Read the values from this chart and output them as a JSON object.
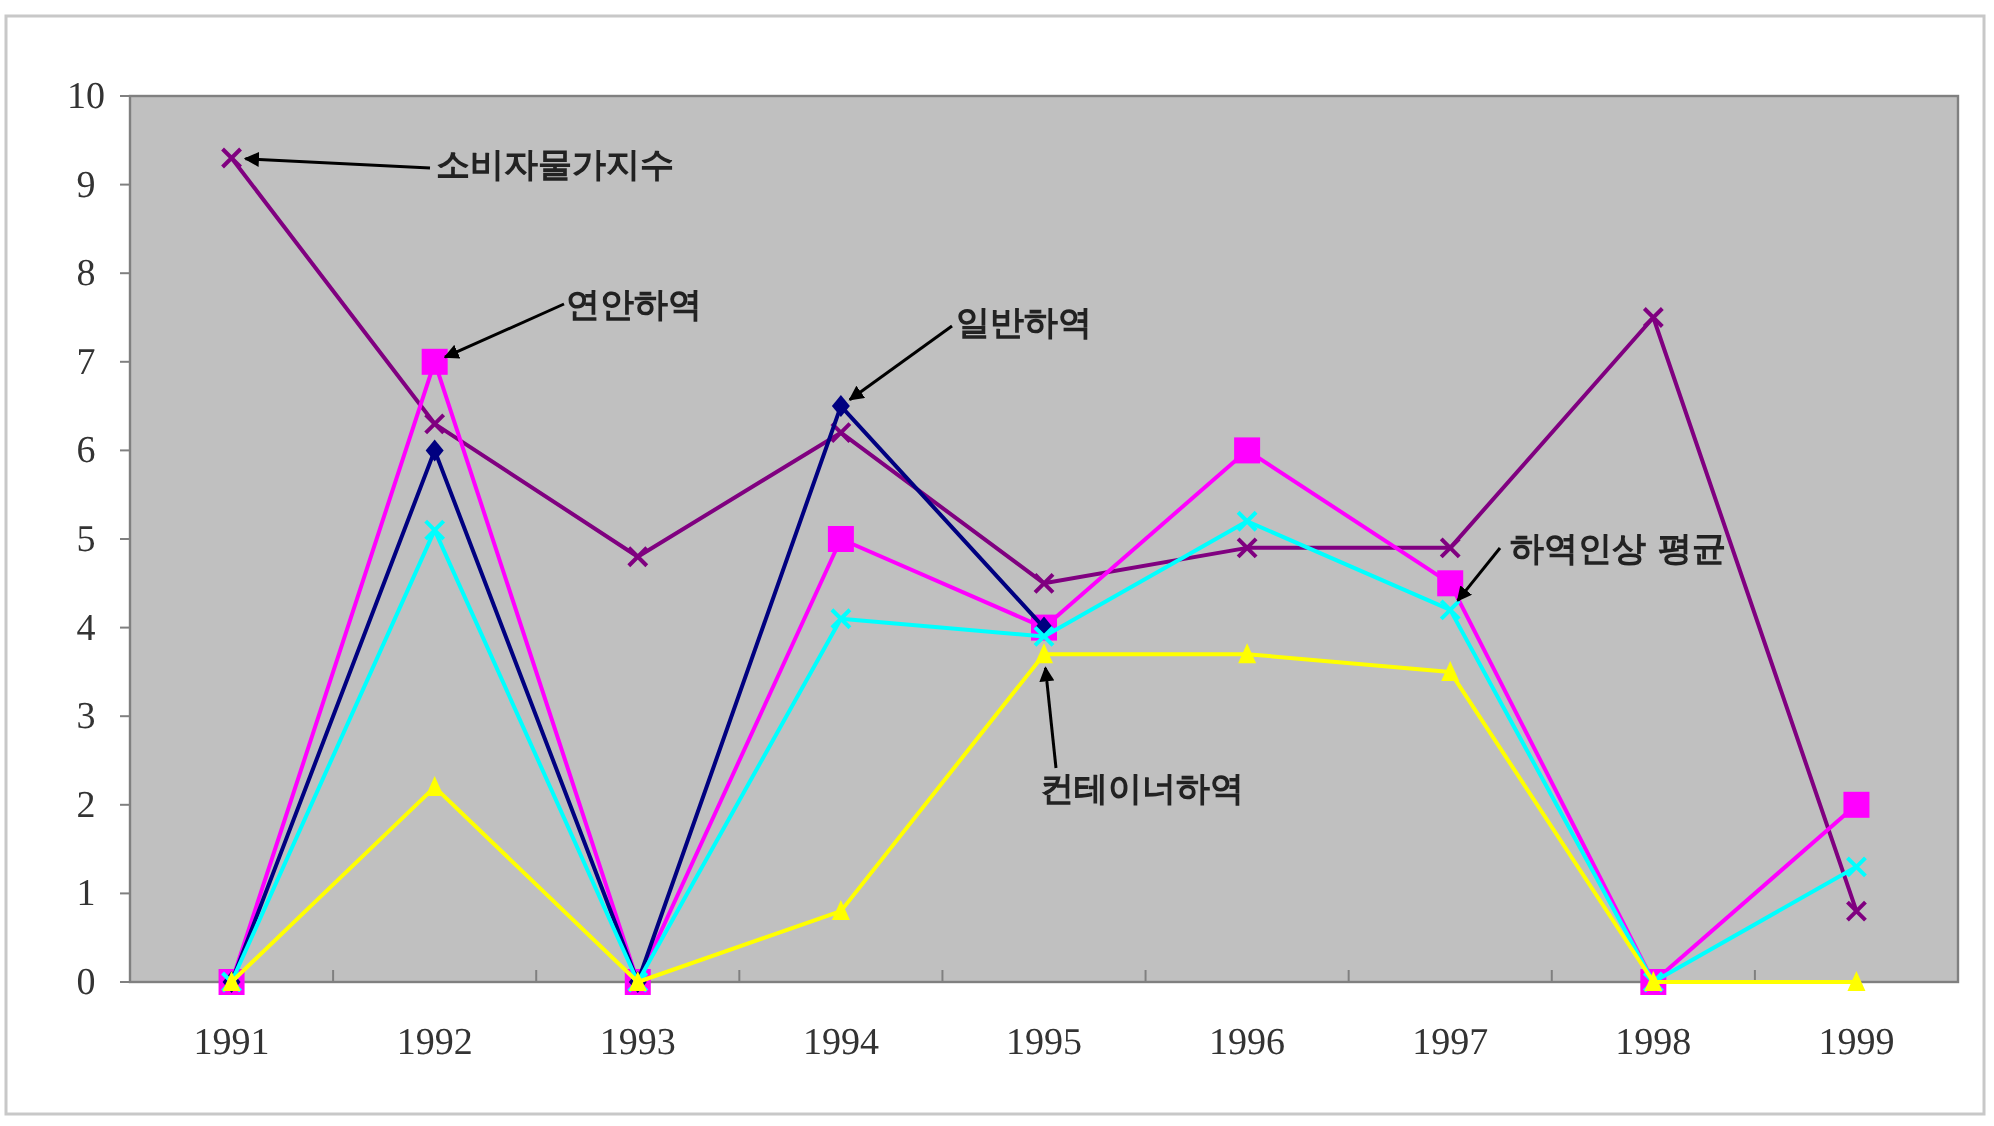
{
  "chart_data": {
    "type": "line",
    "categories": [
      "1991",
      "1992",
      "1993",
      "1994",
      "1995",
      "1996",
      "1997",
      "1998",
      "1999"
    ],
    "ylim": [
      0,
      10
    ],
    "yticks": [
      0,
      1,
      2,
      3,
      4,
      5,
      6,
      7,
      8,
      9,
      10
    ],
    "grid": false,
    "series": [
      {
        "color": "#800080",
        "marker": "cross",
        "values": [
          9.3,
          6.3,
          4.8,
          6.2,
          4.5,
          4.9,
          4.9,
          7.5,
          0.8
        ]
      },
      {
        "color": "#ff00ff",
        "marker": "square",
        "values": [
          0,
          7.0,
          0,
          5.0,
          4.0,
          6.0,
          4.5,
          0,
          2.0
        ]
      },
      {
        "color": "#000080",
        "marker": "diamond",
        "values": [
          0,
          6.0,
          0,
          6.5,
          4.0,
          null,
          null,
          null,
          null
        ]
      },
      {
        "color": "#00ffff",
        "marker": "cross",
        "values": [
          0,
          5.1,
          0,
          4.1,
          3.9,
          5.2,
          4.2,
          0,
          1.3
        ]
      },
      {
        "color": "#ffff00",
        "marker": "triangle",
        "values": [
          0,
          2.2,
          0,
          0.8,
          3.7,
          3.7,
          3.5,
          0,
          0
        ]
      }
    ],
    "annotations": [
      {
        "text": "소비자물가지수",
        "x": "1991",
        "y": 9.3
      },
      {
        "text": "연안하역",
        "x": "1992",
        "y": 7.0
      },
      {
        "text": "일반하역",
        "x": "1994",
        "y": 6.5
      },
      {
        "text": "하역인상 평균",
        "x": "1997",
        "y": 4.2
      },
      {
        "text": "컨테이너하역",
        "x": "1995",
        "y": 3.7
      }
    ]
  }
}
